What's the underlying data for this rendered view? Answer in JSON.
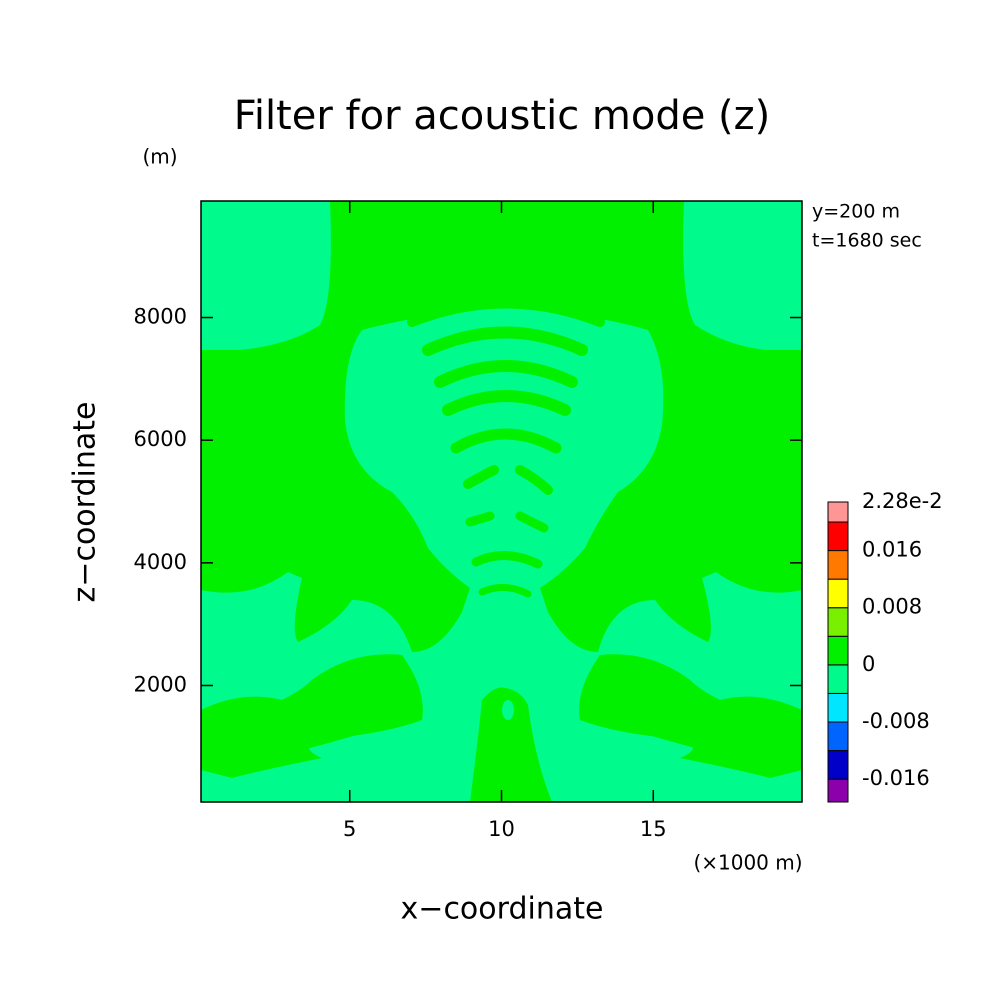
{
  "chart_data": {
    "type": "contour",
    "title": "Filter for acoustic mode (z)",
    "xlabel": "x−coordinate",
    "ylabel": "z−coordinate",
    "x_unit": "(×1000 m)",
    "y_unit": "(m)",
    "annotations": [
      "y=200 m",
      "t=1680 sec"
    ],
    "xlim": [
      0.1,
      19.9
    ],
    "ylim": [
      100,
      9900
    ],
    "xticks": [
      5,
      10,
      15
    ],
    "yticks": [
      2000,
      4000,
      6000,
      8000
    ],
    "colorbar": {
      "levels": [
        -0.0192,
        -0.016,
        -0.012,
        -0.008,
        -0.004,
        0,
        0.004,
        0.008,
        0.012,
        0.016,
        0.02,
        0.0228
      ],
      "colors": [
        "#8b00aa",
        "#0000c8",
        "#0064ff",
        "#00e6ff",
        "#00fa8c",
        "#00f000",
        "#78f000",
        "#ffff00",
        "#ff7800",
        "#ff0000",
        "#ff9696"
      ],
      "ticks": [
        -0.016,
        -0.008,
        0,
        0.008,
        0.016,
        {
          "value": 0.0228,
          "label": "2.28e-2"
        }
      ]
    }
  }
}
